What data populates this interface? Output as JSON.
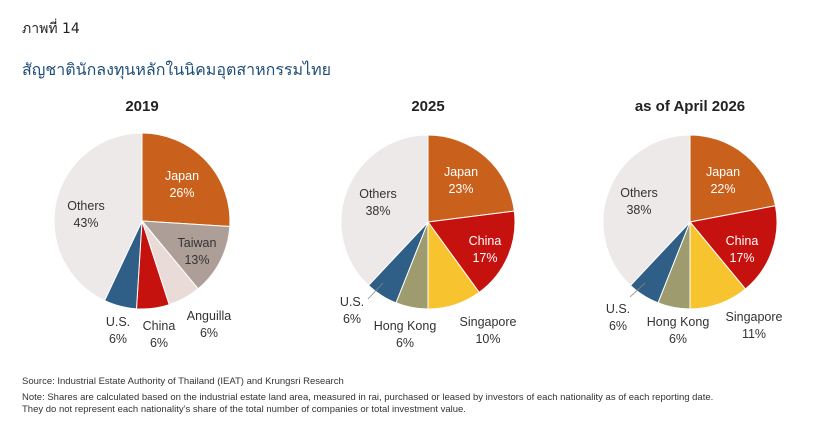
{
  "figure_label": "ภาพที่ 14",
  "figure_title": "สัญชาตินักลงทุนหลักในนิคมอุตสาหกรรมไทย",
  "source": "Source: Industrial Estate Authority of Thailand (IEAT) and Krungsri Research",
  "note_line1": "Note: Shares are calculated based on the industrial estate land area, measured in rai, purchased or leased by investors of each nationality as of each reporting date.",
  "note_line2": "They do not represent each nationality’s share of the total number of companies or total investment value.",
  "colors": {
    "Japan": "#c9611c",
    "Taiwan": "#ae9e98",
    "Anguilla": "#e9dcd8",
    "China": "#c5120e",
    "U.S.": "#2f5f86",
    "Others": "#ece9e8",
    "Hong Kong": "#9e9c6e",
    "Singapore": "#f7c32e"
  },
  "chart_data": [
    {
      "type": "pie",
      "title": "2019",
      "slices": [
        {
          "label": "Japan",
          "value": 26,
          "text": "26%"
        },
        {
          "label": "Taiwan",
          "value": 13,
          "text": "13%"
        },
        {
          "label": "Anguilla",
          "value": 6,
          "text": "6%"
        },
        {
          "label": "China",
          "value": 6,
          "text": "6%"
        },
        {
          "label": "U.S.",
          "value": 6,
          "text": "6%"
        },
        {
          "label": "Others",
          "value": 43,
          "text": "43%"
        }
      ]
    },
    {
      "type": "pie",
      "title": "2025",
      "slices": [
        {
          "label": "Japan",
          "value": 23,
          "text": "23%"
        },
        {
          "label": "China",
          "value": 17,
          "text": "17%"
        },
        {
          "label": "Singapore",
          "value": 10,
          "text": "10%"
        },
        {
          "label": "Hong Kong",
          "value": 6,
          "text": "6%"
        },
        {
          "label": "U.S.",
          "value": 6,
          "text": "6%"
        },
        {
          "label": "Others",
          "value": 38,
          "text": "38%"
        }
      ]
    },
    {
      "type": "pie",
      "title": "as of April 2026",
      "slices": [
        {
          "label": "Japan",
          "value": 22,
          "text": "22%"
        },
        {
          "label": "China",
          "value": 17,
          "text": "17%"
        },
        {
          "label": "Singapore",
          "value": 11,
          "text": "11%"
        },
        {
          "label": "Hong Kong",
          "value": 6,
          "text": "6%"
        },
        {
          "label": "U.S.",
          "value": 6,
          "text": "6%"
        },
        {
          "label": "Others",
          "value": 38,
          "text": "38%"
        }
      ]
    }
  ]
}
